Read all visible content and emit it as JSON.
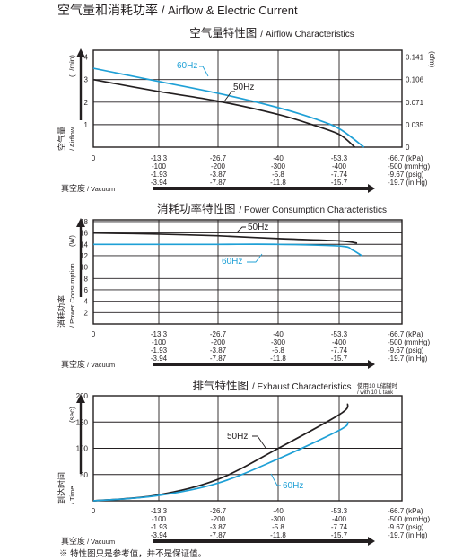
{
  "page": {
    "title_cn": "空气量和消耗功率",
    "title_en": "/ Airflow & Electric Current",
    "footnote": "※ 特性图只是参考值，并不是保证值。"
  },
  "x_axis": {
    "rows": [
      {
        "values": [
          "0",
          "-13.3",
          "-26.7",
          "-40",
          "-53.3",
          "-66.7 (kPa)"
        ]
      },
      {
        "values": [
          "",
          "-100",
          "-200",
          "-300",
          "-400",
          "-500 (mmHg)"
        ]
      },
      {
        "values": [
          "",
          "-1.93",
          "-3.87",
          "-5.8",
          "-7.74",
          "-9.67 (psig)"
        ]
      },
      {
        "values": [
          "",
          "-3.94",
          "-7.87",
          "-11.8",
          "-15.7",
          "-19.7 (in.Hg)"
        ]
      }
    ],
    "label_cn": "真空度",
    "label_en": "/ Vacuum"
  },
  "charts": [
    {
      "title_cn": "空气量特性图",
      "title_en": "/ Airflow Characteristics",
      "ylabel_cn": "空气量",
      "ylabel_en": "/ Airflow",
      "ylabel_unit": "(L/min)",
      "y_ticks": [
        "4",
        "3",
        "2",
        "1"
      ],
      "y2_unit": "(cfm)",
      "y2_ticks": [
        "0.141",
        "0.106",
        "0.071",
        "0.035",
        "0"
      ],
      "labels": {
        "s60": "60Hz",
        "s50": "50Hz"
      }
    },
    {
      "title_cn": "消耗功率特性图",
      "title_en": "/ Power Consumption Characteristics",
      "ylabel_cn": "消耗功率",
      "ylabel_en": "/ Power Consumption",
      "ylabel_unit": "(W)",
      "y_ticks": [
        "18",
        "16",
        "14",
        "12",
        "10",
        "8",
        "6",
        "4",
        "2"
      ],
      "labels": {
        "s60": "60Hz",
        "s50": "50Hz"
      }
    },
    {
      "title_cn": "排气特性图",
      "title_en": "/ Exhaust Characteristics",
      "ylabel_cn": "到达时间",
      "ylabel_en": "/ Time",
      "ylabel_unit": "(sec)",
      "y_ticks": [
        "200",
        "150",
        "100",
        "50"
      ],
      "note_cn": "使用10 L储罐时",
      "note_en": "/ with 10 L tank",
      "labels": {
        "s60": "60Hz",
        "s50": "50Hz"
      }
    }
  ],
  "colors": {
    "s50": "#231f20",
    "s60": "#1fa0d6",
    "grid": "#231f20"
  },
  "chart_data": [
    {
      "type": "line",
      "title": "空气量特性图 / Airflow Characteristics",
      "xlabel": "真空度 / Vacuum (kPa)",
      "ylabel": "空气量 / Airflow (L/min)",
      "xlim": [
        0,
        -66.7
      ],
      "ylim": [
        0,
        4.3
      ],
      "grid": true,
      "series": [
        {
          "name": "60Hz",
          "x": [
            0,
            -13.3,
            -26.7,
            -40,
            -48,
            -53.3,
            -58.5
          ],
          "y": [
            3.5,
            2.95,
            2.4,
            1.75,
            1.25,
            0.8,
            0.0
          ]
        },
        {
          "name": "50Hz",
          "x": [
            0,
            -13.3,
            -26.7,
            -40,
            -48,
            -53.3,
            -56.5
          ],
          "y": [
            3.0,
            2.5,
            2.05,
            1.45,
            0.95,
            0.55,
            0.0
          ]
        }
      ]
    },
    {
      "type": "line",
      "title": "消耗功率特性图 / Power Consumption Characteristics",
      "xlabel": "真空度 / Vacuum (kPa)",
      "ylabel": "消耗功率 / Power Consumption (W)",
      "xlim": [
        0,
        -66.7
      ],
      "ylim": [
        0,
        18
      ],
      "grid": true,
      "series": [
        {
          "name": "50Hz",
          "x": [
            0,
            -13.3,
            -26.7,
            -40,
            -53.3,
            -57
          ],
          "y": [
            16.0,
            15.8,
            15.5,
            15.0,
            14.6,
            14.2
          ]
        },
        {
          "name": "60Hz",
          "x": [
            0,
            -13.3,
            -26.7,
            -40,
            -53.3,
            -56,
            -58
          ],
          "y": [
            14.0,
            14.0,
            14.0,
            14.0,
            13.7,
            13.0,
            12.0
          ]
        }
      ]
    },
    {
      "type": "line",
      "title": "排气特性图 / Exhaust Characteristics",
      "xlabel": "真空度 / Vacuum (kPa)",
      "ylabel": "到达时间 / Time (sec)",
      "xlim": [
        0,
        -66.7
      ],
      "ylim": [
        0,
        200
      ],
      "grid": true,
      "series": [
        {
          "name": "50Hz",
          "x": [
            0,
            -13.3,
            -26.7,
            -40,
            -53.3,
            -55
          ],
          "y": [
            0,
            10,
            40,
            100,
            165,
            185
          ]
        },
        {
          "name": "60Hz",
          "x": [
            0,
            -13.3,
            -26.7,
            -40,
            -53.3,
            -55
          ],
          "y": [
            0,
            9,
            33,
            80,
            135,
            150
          ]
        }
      ]
    }
  ]
}
